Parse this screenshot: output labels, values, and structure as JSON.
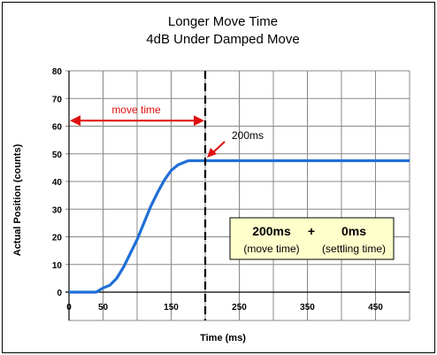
{
  "chart_data": {
    "type": "line",
    "title": [
      "Longer Move Time",
      "4dB Under Damped Move"
    ],
    "xlabel": "Time (ms)",
    "ylabel": "Actual Position (counts)",
    "xlim": [
      0,
      500
    ],
    "ylim": [
      0,
      80
    ],
    "x_ticks": [
      0,
      50,
      150,
      250,
      350,
      450
    ],
    "y_ticks": [
      0,
      10,
      20,
      30,
      40,
      50,
      60,
      70,
      80
    ],
    "grid": true,
    "series": [
      {
        "color": "#1f6fd6",
        "points": [
          [
            0,
            0
          ],
          [
            40,
            0
          ],
          [
            50,
            1.5
          ],
          [
            60,
            2.5
          ],
          [
            70,
            5
          ],
          [
            80,
            9
          ],
          [
            90,
            14
          ],
          [
            100,
            19
          ],
          [
            110,
            25
          ],
          [
            120,
            31
          ],
          [
            130,
            36
          ],
          [
            140,
            40.5
          ],
          [
            150,
            44
          ],
          [
            160,
            46
          ],
          [
            170,
            47
          ],
          [
            175,
            47.5
          ],
          [
            500,
            47.5
          ]
        ]
      }
    ],
    "vline": {
      "x": 200,
      "style": "dashed",
      "color": "#000000"
    },
    "annotations": {
      "move_time_label": "move time",
      "move_time_range": [
        0,
        200
      ],
      "move_time_y": 62,
      "arrow_label": "200ms",
      "arrow_point": [
        200,
        48
      ],
      "accent_color": "#e01010"
    },
    "info_box": {
      "value1": "200ms",
      "plus": "+",
      "value2": "0ms",
      "label1": "(move time)",
      "label2": "(settling time)",
      "fill": "#ffffcc"
    }
  }
}
